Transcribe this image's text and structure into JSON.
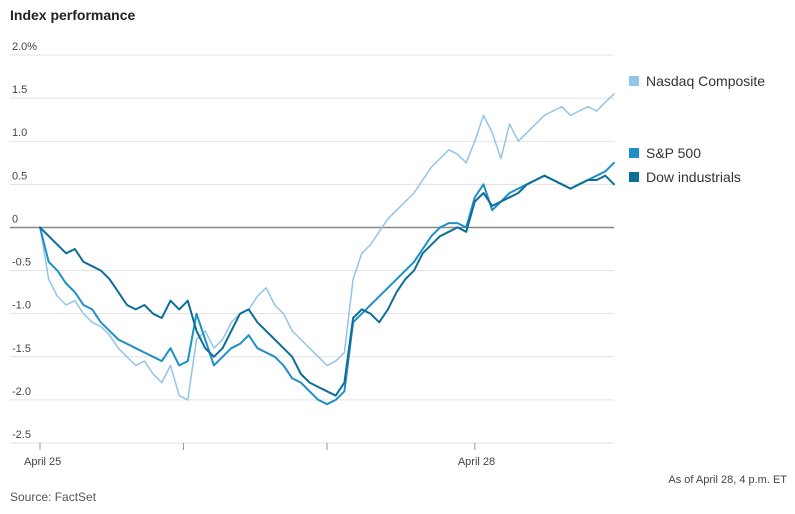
{
  "chart_data": {
    "type": "line",
    "title": "Index performance",
    "source": "Source: FactSet",
    "note": "As of April 28, 4 p.m. ET",
    "ylim": [
      -2.5,
      2.0
    ],
    "xlim": [
      0,
      66
    ],
    "grid": true,
    "y_ticks": [
      {
        "value": 2.0,
        "label": "2.0%"
      },
      {
        "value": 1.5,
        "label": "1.5"
      },
      {
        "value": 1.0,
        "label": "1.0"
      },
      {
        "value": 0.5,
        "label": "0.5"
      },
      {
        "value": 0,
        "label": "0"
      },
      {
        "value": -0.5,
        "label": "-0.5"
      },
      {
        "value": -1.0,
        "label": "-1.0"
      },
      {
        "value": -1.5,
        "label": "-1.5"
      },
      {
        "value": -2.0,
        "label": "-2.0"
      },
      {
        "value": -2.5,
        "label": "-2.5"
      }
    ],
    "x_ticks": [
      {
        "value": 0,
        "label": "April 25"
      },
      {
        "value": 16.5,
        "label": ""
      },
      {
        "value": 33,
        "label": ""
      },
      {
        "value": 50,
        "label": "April 28"
      }
    ],
    "legend_placement": "right",
    "series": [
      {
        "name": "Nasdaq Composite",
        "color": "#92c5e6",
        "width": 1.5,
        "values": [
          0,
          -0.6,
          -0.8,
          -0.9,
          -0.85,
          -1.0,
          -1.1,
          -1.15,
          -1.25,
          -1.4,
          -1.5,
          -1.6,
          -1.55,
          -1.7,
          -1.8,
          -1.6,
          -1.95,
          -2.0,
          -1.3,
          -1.2,
          -1.4,
          -1.3,
          -1.1,
          -1.0,
          -0.95,
          -0.8,
          -0.7,
          -0.9,
          -1.0,
          -1.2,
          -1.3,
          -1.4,
          -1.5,
          -1.6,
          -1.55,
          -1.45,
          -0.6,
          -0.3,
          -0.2,
          -0.05,
          0.1,
          0.2,
          0.3,
          0.4,
          0.55,
          0.7,
          0.8,
          0.9,
          0.85,
          0.75,
          1.0,
          1.3,
          1.1,
          0.8,
          1.2,
          1.0,
          1.1,
          1.2,
          1.3,
          1.35,
          1.4,
          1.3,
          1.35,
          1.4,
          1.35,
          1.45,
          1.55
        ]
      },
      {
        "name": "S&P 500",
        "color": "#1e90c6",
        "width": 2,
        "values": [
          0,
          -0.4,
          -0.5,
          -0.65,
          -0.75,
          -0.9,
          -0.95,
          -1.1,
          -1.2,
          -1.3,
          -1.35,
          -1.4,
          -1.45,
          -1.5,
          -1.55,
          -1.4,
          -1.6,
          -1.55,
          -1.0,
          -1.3,
          -1.6,
          -1.5,
          -1.4,
          -1.35,
          -1.25,
          -1.4,
          -1.45,
          -1.5,
          -1.6,
          -1.75,
          -1.8,
          -1.9,
          -2.0,
          -2.05,
          -2.0,
          -1.9,
          -1.1,
          -1.0,
          -0.9,
          -0.8,
          -0.7,
          -0.6,
          -0.5,
          -0.4,
          -0.25,
          -0.1,
          0.0,
          0.05,
          0.05,
          0.0,
          0.35,
          0.5,
          0.2,
          0.3,
          0.4,
          0.45,
          0.5,
          0.55,
          0.6,
          0.55,
          0.5,
          0.45,
          0.5,
          0.55,
          0.6,
          0.65,
          0.75
        ]
      },
      {
        "name": "Dow industrials",
        "color": "#0d6e98",
        "width": 2,
        "values": [
          0,
          -0.1,
          -0.2,
          -0.3,
          -0.25,
          -0.4,
          -0.45,
          -0.5,
          -0.6,
          -0.75,
          -0.9,
          -0.95,
          -0.9,
          -1.0,
          -1.05,
          -0.85,
          -0.95,
          -0.85,
          -1.2,
          -1.4,
          -1.5,
          -1.4,
          -1.2,
          -1.0,
          -0.95,
          -1.1,
          -1.2,
          -1.3,
          -1.4,
          -1.5,
          -1.7,
          -1.8,
          -1.85,
          -1.9,
          -1.95,
          -1.8,
          -1.05,
          -0.95,
          -1.0,
          -1.1,
          -0.95,
          -0.75,
          -0.6,
          -0.5,
          -0.3,
          -0.2,
          -0.1,
          -0.05,
          0.0,
          -0.05,
          0.3,
          0.4,
          0.25,
          0.3,
          0.35,
          0.4,
          0.5,
          0.55,
          0.6,
          0.55,
          0.5,
          0.45,
          0.5,
          0.55,
          0.55,
          0.6,
          0.5
        ]
      }
    ]
  }
}
